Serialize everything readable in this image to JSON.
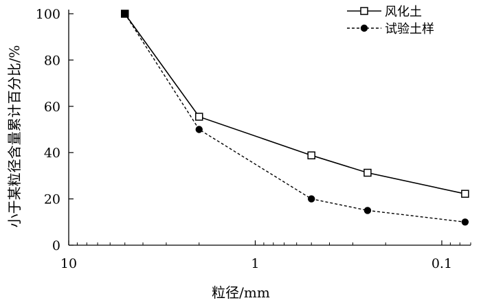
{
  "chart_data": {
    "type": "line",
    "xlabel": "粒径/mm",
    "ylabel": "小于某粒径含量累计百分比/%",
    "x_scale": "log",
    "x_reversed": true,
    "xlim": [
      10,
      0.07
    ],
    "ylim": [
      0,
      100
    ],
    "x_ticks": [
      10,
      1,
      0.1
    ],
    "x_tick_labels": [
      "10",
      "1",
      "0.1"
    ],
    "y_ticks": [
      0,
      20,
      40,
      60,
      80,
      100
    ],
    "y_tick_labels": [
      "0",
      "20",
      "40",
      "60",
      "80",
      "100"
    ],
    "grid": false,
    "legend_position": "top-right",
    "series": [
      {
        "name": "风化土",
        "marker": "open-square",
        "line_style": "solid",
        "x": [
          5,
          2,
          0.5,
          0.25,
          0.075
        ],
        "y": [
          100,
          55.5,
          38.8,
          31.3,
          22.2
        ]
      },
      {
        "name": "试验土样",
        "marker": "filled-circle",
        "line_style": "dashed",
        "x": [
          5,
          2,
          0.5,
          0.25,
          0.075
        ],
        "y": [
          100,
          50,
          20,
          15,
          10
        ]
      }
    ]
  }
}
